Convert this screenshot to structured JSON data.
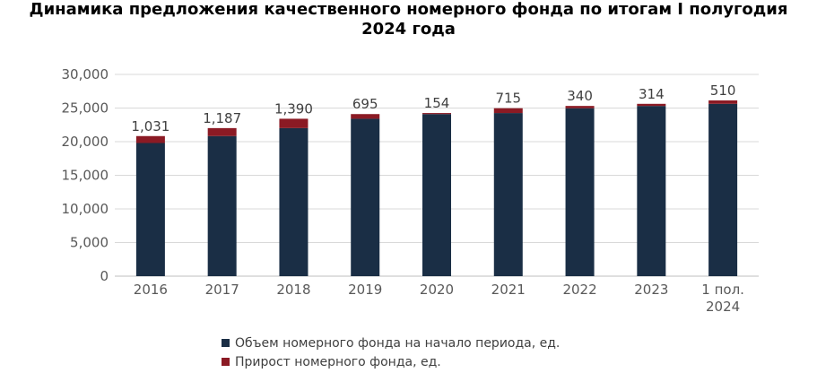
{
  "chart_data": {
    "type": "bar",
    "stacked": true,
    "title_lines": [
      "Динамика предложения качественного номерного фонда по итогам I полугодия",
      "2024 года"
    ],
    "categories": [
      "2016",
      "2017",
      "2018",
      "2019",
      "2020",
      "2021",
      "2022",
      "2023",
      "1 пол. 2024"
    ],
    "category_lines": [
      [
        "2016"
      ],
      [
        "2017"
      ],
      [
        "2018"
      ],
      [
        "2019"
      ],
      [
        "2020"
      ],
      [
        "2021"
      ],
      [
        "2022"
      ],
      [
        "2023"
      ],
      [
        "1 пол.",
        "2024"
      ]
    ],
    "series": [
      {
        "name": "Объем номерного фонда на начало периода, ед.",
        "color": "#1a2e45",
        "values": [
          19800,
          20831,
          22018,
          23408,
          24103,
          24257,
          24972,
          25312,
          25626
        ]
      },
      {
        "name": "Прирост номерного фонда, ед.",
        "color": "#8b1a24",
        "values": [
          1031,
          1187,
          1390,
          695,
          154,
          715,
          340,
          314,
          510
        ]
      }
    ],
    "data_labels": [
      "1,031",
      "1,187",
      "1,390",
      "695",
      "154",
      "715",
      "340",
      "314",
      "510"
    ],
    "ylim": [
      0,
      30000
    ],
    "yticks": [
      0,
      5000,
      10000,
      15000,
      20000,
      25000,
      30000
    ],
    "ytick_labels": [
      "0",
      "5,000",
      "10,000",
      "15,000",
      "20,000",
      "25,000",
      "30,000"
    ],
    "grid": true,
    "legend_position": "bottom",
    "gridline_color": "#d9d9d9",
    "axis_color": "#bfbfbf"
  }
}
